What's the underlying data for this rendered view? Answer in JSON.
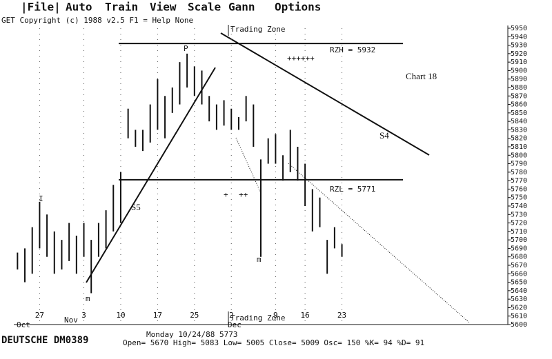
{
  "menu": [
    "|File|",
    "Auto",
    "Train",
    "View",
    "Scale",
    "Gann",
    "Options"
  ],
  "status_line": "GET Copyright (c) 1988 v2.5 F1 = Help  None",
  "chart_data": {
    "type": "hilo",
    "title": "Chart 18",
    "categories": [
      null,
      null,
      null,
      "27",
      null,
      null,
      null,
      null,
      null,
      "3",
      null,
      null,
      null,
      null,
      "10",
      null,
      null,
      null,
      null,
      "17",
      null,
      null,
      null,
      null,
      "25",
      null,
      null,
      null,
      null,
      "2",
      null,
      null,
      null,
      null,
      null,
      "9",
      null,
      null,
      null,
      "16",
      null,
      null,
      null,
      null,
      "23",
      null,
      null,
      null,
      null,
      null,
      null,
      null,
      null,
      null,
      null,
      null,
      null,
      null,
      null,
      null,
      null,
      null,
      null,
      null,
      null,
      null,
      null
    ],
    "high": [
      5685,
      5690,
      5715,
      5745,
      5730,
      5710,
      5700,
      5720,
      5705,
      5720,
      5700,
      5720,
      5735,
      5765,
      5780,
      5855,
      5830,
      5830,
      5860,
      5890,
      5870,
      5880,
      5910,
      5920,
      5905,
      5900,
      5870,
      5860,
      5865,
      5855,
      5845,
      5870,
      5860,
      5795,
      5820,
      5825,
      5800,
      5830,
      5810,
      5790,
      5760,
      5750,
      5700,
      5715,
      5695,
      null,
      null,
      null,
      null,
      null,
      null,
      null,
      null,
      null,
      null,
      null,
      null,
      null,
      null,
      null,
      null,
      null,
      null,
      null,
      null,
      null,
      null
    ],
    "low": [
      5665,
      5650,
      5660,
      5690,
      5680,
      5660,
      5665,
      5675,
      5660,
      5680,
      5637,
      5680,
      5690,
      5710,
      5720,
      5820,
      5810,
      5805,
      5815,
      5830,
      5820,
      5850,
      5860,
      5880,
      5870,
      5860,
      5840,
      5830,
      5835,
      5830,
      5830,
      5840,
      5810,
      5680,
      5790,
      5790,
      5770,
      5780,
      5770,
      5740,
      5710,
      5715,
      5660,
      5690,
      5680,
      null,
      null,
      null,
      null,
      null,
      null,
      null,
      null,
      null,
      null,
      null,
      null,
      null,
      null,
      null,
      null,
      null,
      null,
      null,
      null,
      null,
      null
    ],
    "color": "#111111",
    "ylim": [
      5600,
      5950
    ],
    "yticks": [
      5600,
      5610,
      5620,
      5630,
      5640,
      5650,
      5660,
      5670,
      5680,
      5690,
      5700,
      5710,
      5720,
      5730,
      5740,
      5750,
      5760,
      5770,
      5780,
      5790,
      5800,
      5810,
      5820,
      5830,
      5840,
      5850,
      5860,
      5870,
      5880,
      5890,
      5900,
      5910,
      5920,
      5930,
      5940,
      5950
    ],
    "levels": [
      {
        "label": "RZH = 5932",
        "value": 5932
      },
      {
        "label": "RZL = 5771",
        "value": 5771
      }
    ],
    "months": [
      "Oct",
      "Nov",
      "Dec"
    ],
    "zone_labels": [
      "Trading Zone",
      "Trading Zone"
    ],
    "trend_labels": [
      "S4",
      "S5"
    ],
    "markers": [
      "P",
      "m",
      "m",
      "I"
    ],
    "plus_marks": [
      "++++++",
      "+",
      "++"
    ]
  },
  "footer": {
    "symbol": "DEUTSCHE  DM0389",
    "date": "Monday 10/24/88   5773",
    "quote": "Open= 5670 High= 5083 Low= 5005 Close= 5009 Osc=  150 %K= 94 %D= 91"
  }
}
